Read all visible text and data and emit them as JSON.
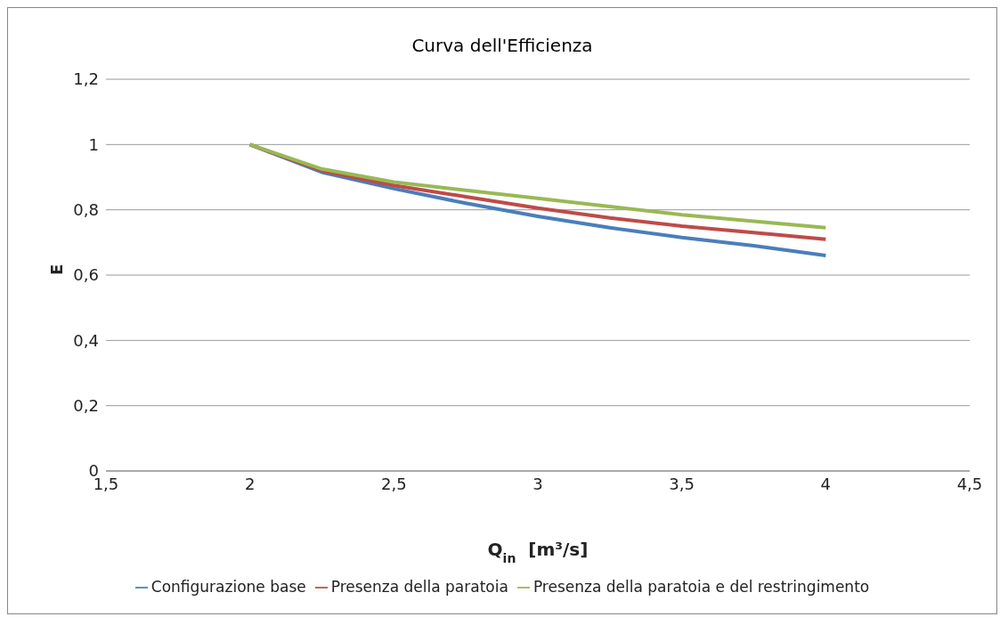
{
  "chart_data": {
    "type": "line",
    "title": "Curva dell'Efficienza",
    "xlabel": "Q$_{in}$  [m³/s]",
    "ylabel": "E",
    "x": [
      2,
      2.25,
      2.5,
      2.75,
      3,
      3.25,
      3.5,
      3.75,
      4
    ],
    "series": [
      {
        "name": "Configurazione base",
        "color": "#4a7ebb",
        "values": [
          1,
          0.915,
          0.865,
          0.82,
          0.78,
          0.745,
          0.715,
          0.69,
          0.66
        ]
      },
      {
        "name": "Presenza della paratoia",
        "color": "#be4b48",
        "values": [
          1,
          0.92,
          0.875,
          0.84,
          0.805,
          0.775,
          0.75,
          0.73,
          0.71
        ]
      },
      {
        "name": "Presenza della paratoia e del restringimento",
        "color": "#98b954",
        "values": [
          1,
          0.925,
          0.885,
          0.86,
          0.835,
          0.81,
          0.785,
          0.765,
          0.745
        ]
      }
    ],
    "xlim": [
      1.5,
      4.5
    ],
    "xticks": [
      {
        "value": 1.5,
        "label": "1,5"
      },
      2,
      {
        "value": 2.5,
        "label": "2,5"
      },
      3,
      {
        "value": 3.5,
        "label": "3,5"
      },
      4,
      {
        "value": 4.5,
        "label": "4,5"
      }
    ],
    "ylim": [
      0,
      1.2
    ],
    "yticks": [
      0,
      {
        "value": 0.2,
        "label": "0,2"
      },
      {
        "value": 0.4,
        "label": "0,4"
      },
      {
        "value": 0.6,
        "label": "0,6"
      },
      {
        "value": 0.8,
        "label": "0,8"
      },
      1,
      {
        "value": 1.2,
        "label": "1,2"
      }
    ],
    "grid": "y",
    "legend": "bottom",
    "marker": "none",
    "line_style": "solid"
  }
}
